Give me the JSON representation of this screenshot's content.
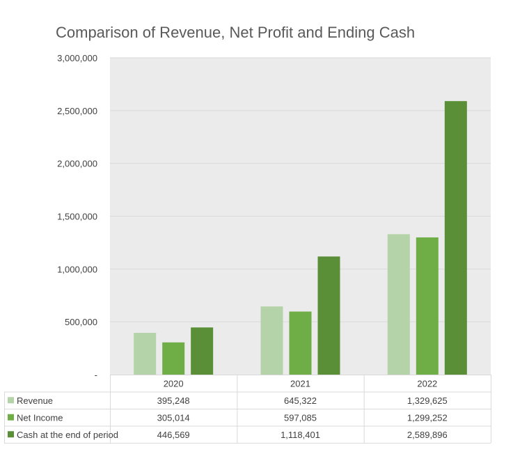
{
  "chart_data": {
    "type": "bar",
    "title": "Comparison of Revenue, Net Profit and Ending Cash",
    "categories": [
      "2020",
      "2021",
      "2022"
    ],
    "ylim": [
      0,
      3000000
    ],
    "yticks": [
      {
        "value": 0,
        "label": "-"
      },
      {
        "value": 500000,
        "label": "500,000"
      },
      {
        "value": 1000000,
        "label": "1,000,000"
      },
      {
        "value": 1500000,
        "label": "1,500,000"
      },
      {
        "value": 2000000,
        "label": "2,000,000"
      },
      {
        "value": 2500000,
        "label": "2,500,000"
      },
      {
        "value": 3000000,
        "label": "3,000,000"
      }
    ],
    "grid": true,
    "legend": "data-table",
    "series": [
      {
        "name": "Revenue",
        "color": "#b5d3a8",
        "values": [
          395248,
          645322,
          1329625
        ],
        "labels": [
          "395,248",
          "645,322",
          "1,329,625"
        ]
      },
      {
        "name": "Net Income",
        "color": "#6fad47",
        "values": [
          305014,
          597085,
          1299252
        ],
        "labels": [
          "305,014",
          "597,085",
          "1,299,252"
        ]
      },
      {
        "name": "Cash at the end of period",
        "color": "#5a8f37",
        "values": [
          446569,
          1118401,
          2589896
        ],
        "labels": [
          "446,569",
          "1,118,401",
          "2,589,896"
        ]
      }
    ],
    "plot_background": "#ebebeb"
  }
}
